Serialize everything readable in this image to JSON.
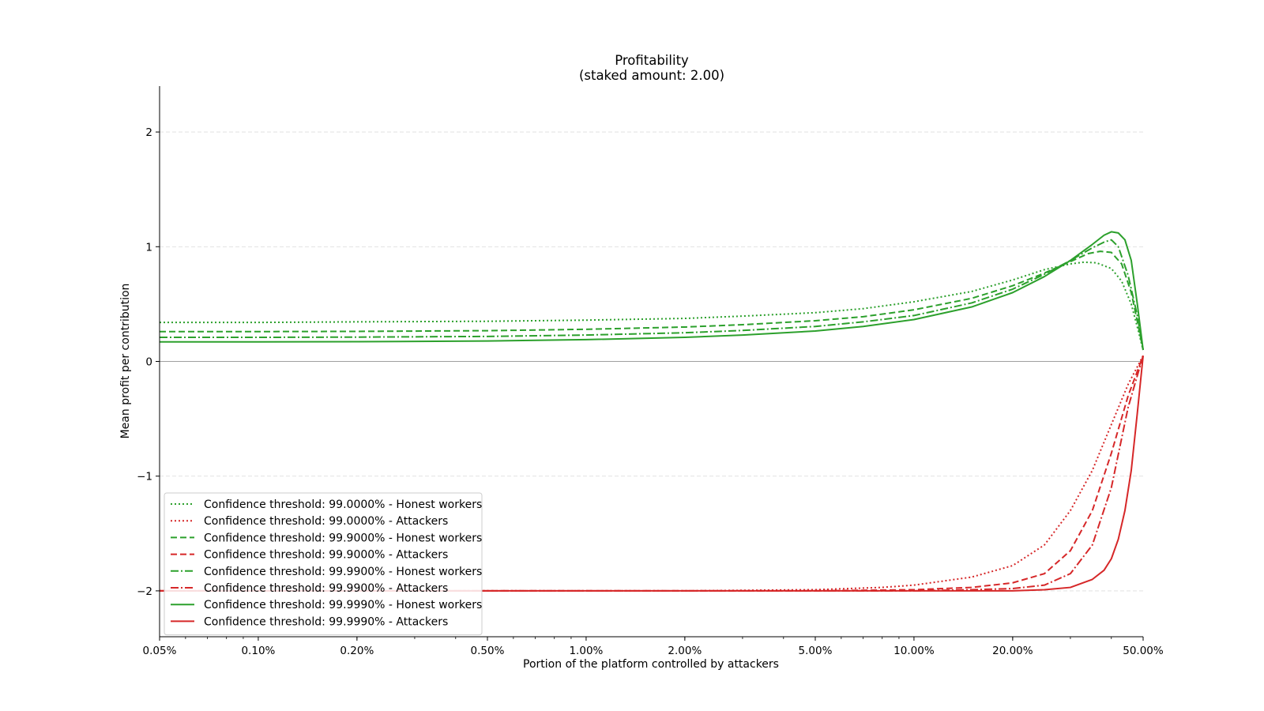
{
  "chart_data": {
    "type": "line",
    "title": "Profitability",
    "subtitle": "(staked amount: 2.00)",
    "xlabel": "Portion of the platform controlled by attackers",
    "ylabel": "Mean profit per contribution",
    "x_scale": "log",
    "x_unit": "percent",
    "xlim": [
      0.05,
      50
    ],
    "ylim": [
      -2.4,
      2.4
    ],
    "x_ticks": [
      {
        "value": 0.05,
        "label": "0.05%"
      },
      {
        "value": 0.1,
        "label": "0.10%"
      },
      {
        "value": 0.2,
        "label": "0.20%"
      },
      {
        "value": 0.5,
        "label": "0.50%"
      },
      {
        "value": 1,
        "label": "1.00%"
      },
      {
        "value": 2,
        "label": "2.00%"
      },
      {
        "value": 5,
        "label": "5.00%"
      },
      {
        "value": 10,
        "label": "10.00%"
      },
      {
        "value": 20,
        "label": "20.00%"
      },
      {
        "value": 50,
        "label": "50.00%"
      }
    ],
    "y_ticks": [
      {
        "value": -2,
        "label": "−2"
      },
      {
        "value": -1,
        "label": "−1"
      },
      {
        "value": 0,
        "label": "0"
      },
      {
        "value": 1,
        "label": "1"
      },
      {
        "value": 2,
        "label": "2"
      }
    ],
    "grid": "horizontal dashed",
    "legend_position": "lower-left",
    "colors": {
      "honest": "#2ca02c",
      "attackers": "#d62728"
    },
    "series": [
      {
        "name": "Confidence threshold: 99.0000% - Honest workers",
        "color": "#2ca02c",
        "dash": "dotted",
        "points": [
          [
            0.05,
            0.34
          ],
          [
            0.1,
            0.34
          ],
          [
            0.2,
            0.345
          ],
          [
            0.5,
            0.35
          ],
          [
            1,
            0.36
          ],
          [
            2,
            0.375
          ],
          [
            3,
            0.395
          ],
          [
            5,
            0.425
          ],
          [
            7,
            0.46
          ],
          [
            10,
            0.52
          ],
          [
            15,
            0.61
          ],
          [
            20,
            0.71
          ],
          [
            25,
            0.8
          ],
          [
            30,
            0.85
          ],
          [
            33,
            0.865
          ],
          [
            36,
            0.86
          ],
          [
            40,
            0.81
          ],
          [
            43,
            0.7
          ],
          [
            46,
            0.5
          ],
          [
            48,
            0.3
          ],
          [
            50,
            0.1
          ]
        ]
      },
      {
        "name": "Confidence threshold: 99.0000% - Attackers",
        "color": "#d62728",
        "dash": "dotted",
        "points": [
          [
            0.05,
            -2
          ],
          [
            0.5,
            -2
          ],
          [
            2,
            -2
          ],
          [
            5,
            -1.99
          ],
          [
            8,
            -1.97
          ],
          [
            10,
            -1.95
          ],
          [
            15,
            -1.88
          ],
          [
            20,
            -1.78
          ],
          [
            25,
            -1.6
          ],
          [
            30,
            -1.3
          ],
          [
            35,
            -0.95
          ],
          [
            40,
            -0.55
          ],
          [
            45,
            -0.2
          ],
          [
            50,
            0.05
          ]
        ]
      },
      {
        "name": "Confidence threshold: 99.9000% - Honest workers",
        "color": "#2ca02c",
        "dash": "dashed",
        "points": [
          [
            0.05,
            0.26
          ],
          [
            0.1,
            0.26
          ],
          [
            0.2,
            0.262
          ],
          [
            0.5,
            0.268
          ],
          [
            1,
            0.28
          ],
          [
            2,
            0.3
          ],
          [
            3,
            0.32
          ],
          [
            5,
            0.355
          ],
          [
            7,
            0.39
          ],
          [
            10,
            0.45
          ],
          [
            15,
            0.55
          ],
          [
            20,
            0.66
          ],
          [
            25,
            0.77
          ],
          [
            30,
            0.87
          ],
          [
            34,
            0.94
          ],
          [
            37,
            0.96
          ],
          [
            40,
            0.95
          ],
          [
            43,
            0.85
          ],
          [
            46,
            0.6
          ],
          [
            48,
            0.35
          ],
          [
            50,
            0.1
          ]
        ]
      },
      {
        "name": "Confidence threshold: 99.9000% - Attackers",
        "color": "#d62728",
        "dash": "dashed",
        "points": [
          [
            0.05,
            -2
          ],
          [
            1,
            -2
          ],
          [
            5,
            -2
          ],
          [
            10,
            -1.99
          ],
          [
            15,
            -1.97
          ],
          [
            20,
            -1.93
          ],
          [
            25,
            -1.85
          ],
          [
            30,
            -1.65
          ],
          [
            35,
            -1.3
          ],
          [
            40,
            -0.8
          ],
          [
            45,
            -0.3
          ],
          [
            50,
            0.05
          ]
        ]
      },
      {
        "name": "Confidence threshold: 99.9900% - Honest workers",
        "color": "#2ca02c",
        "dash": "dashdot",
        "points": [
          [
            0.05,
            0.21
          ],
          [
            0.1,
            0.21
          ],
          [
            0.2,
            0.212
          ],
          [
            0.5,
            0.218
          ],
          [
            1,
            0.23
          ],
          [
            2,
            0.25
          ],
          [
            3,
            0.27
          ],
          [
            5,
            0.305
          ],
          [
            7,
            0.345
          ],
          [
            10,
            0.4
          ],
          [
            15,
            0.51
          ],
          [
            20,
            0.63
          ],
          [
            25,
            0.76
          ],
          [
            30,
            0.88
          ],
          [
            35,
            0.99
          ],
          [
            38,
            1.04
          ],
          [
            40,
            1.06
          ],
          [
            42,
            1.0
          ],
          [
            45,
            0.75
          ],
          [
            48,
            0.4
          ],
          [
            50,
            0.1
          ]
        ]
      },
      {
        "name": "Confidence threshold: 99.9900% - Attackers",
        "color": "#d62728",
        "dash": "dashdot",
        "points": [
          [
            0.05,
            -2
          ],
          [
            1,
            -2
          ],
          [
            10,
            -2
          ],
          [
            15,
            -1.99
          ],
          [
            20,
            -1.98
          ],
          [
            25,
            -1.95
          ],
          [
            30,
            -1.85
          ],
          [
            35,
            -1.6
          ],
          [
            40,
            -1.1
          ],
          [
            45,
            -0.4
          ],
          [
            50,
            0.05
          ]
        ]
      },
      {
        "name": "Confidence threshold: 99.9990% - Honest workers",
        "color": "#2ca02c",
        "dash": "solid",
        "points": [
          [
            0.05,
            0.17
          ],
          [
            0.1,
            0.17
          ],
          [
            0.2,
            0.172
          ],
          [
            0.5,
            0.178
          ],
          [
            1,
            0.19
          ],
          [
            2,
            0.21
          ],
          [
            3,
            0.23
          ],
          [
            5,
            0.265
          ],
          [
            7,
            0.305
          ],
          [
            10,
            0.365
          ],
          [
            15,
            0.475
          ],
          [
            20,
            0.6
          ],
          [
            25,
            0.74
          ],
          [
            30,
            0.88
          ],
          [
            35,
            1.02
          ],
          [
            38,
            1.1
          ],
          [
            40,
            1.13
          ],
          [
            42,
            1.12
          ],
          [
            44,
            1.06
          ],
          [
            46,
            0.88
          ],
          [
            48,
            0.5
          ],
          [
            50,
            0.1
          ]
        ]
      },
      {
        "name": "Confidence threshold: 99.9990% - Attackers",
        "color": "#d62728",
        "dash": "solid",
        "points": [
          [
            0.05,
            -2
          ],
          [
            1,
            -2
          ],
          [
            10,
            -2
          ],
          [
            20,
            -2
          ],
          [
            25,
            -1.99
          ],
          [
            30,
            -1.97
          ],
          [
            35,
            -1.9
          ],
          [
            38,
            -1.82
          ],
          [
            40,
            -1.72
          ],
          [
            42,
            -1.55
          ],
          [
            44,
            -1.3
          ],
          [
            46,
            -0.95
          ],
          [
            48,
            -0.45
          ],
          [
            50,
            0.05
          ]
        ]
      }
    ]
  }
}
